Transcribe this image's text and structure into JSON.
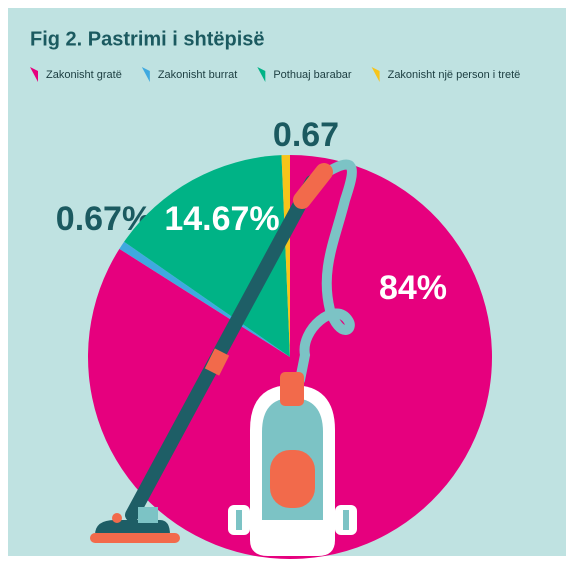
{
  "chart_data": {
    "type": "pie",
    "title": "Fig 2. Pastrimi i shtëpisë",
    "categories": [
      "Zakonisht gratë",
      "Zakonisht burrat",
      "Pothuaj barabar",
      "Zakonisht një person i tretë"
    ],
    "values": [
      84,
      0.67,
      14.67,
      0.67
    ],
    "value_labels": [
      "84%",
      "0.67%",
      "14.67%",
      "0.67"
    ],
    "colors": [
      "#e6007e",
      "#3fa9e0",
      "#00b386",
      "#f7c41a"
    ]
  }
}
